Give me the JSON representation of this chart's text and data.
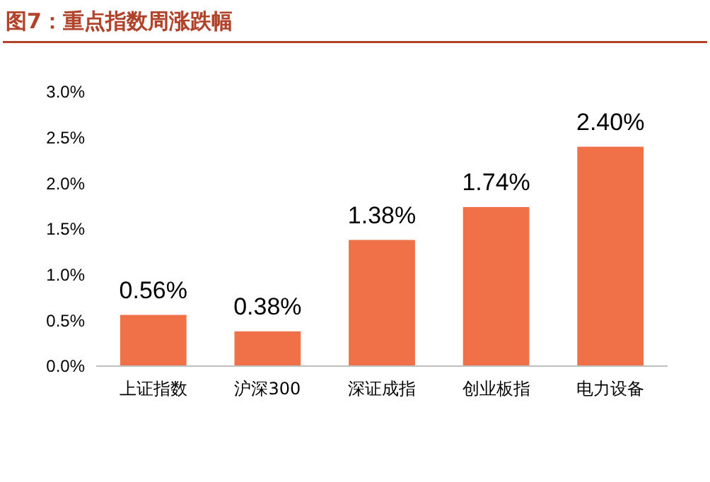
{
  "chart_data": {
    "type": "bar",
    "title": "图7：重点指数周涨跌幅",
    "categories": [
      "上证指数",
      "沪深300",
      "深证成指",
      "创业板指",
      "电力设备"
    ],
    "values": [
      0.56,
      0.38,
      1.38,
      1.74,
      2.4
    ],
    "value_labels": [
      "0.56%",
      "0.38%",
      "1.38%",
      "1.74%",
      "2.40%"
    ],
    "color": "#f07048",
    "ylim": [
      0,
      3
    ],
    "yticks": [
      {
        "value": 0,
        "label": "0.0%"
      },
      {
        "value": 0.5,
        "label": "0.5%"
      },
      {
        "value": 1,
        "label": "1.0%"
      },
      {
        "value": 1.5,
        "label": "1.5%"
      },
      {
        "value": 2,
        "label": "2.0%"
      },
      {
        "value": 2.5,
        "label": "2.5%"
      },
      {
        "value": 3,
        "label": "3.0%"
      }
    ],
    "grid": false
  }
}
